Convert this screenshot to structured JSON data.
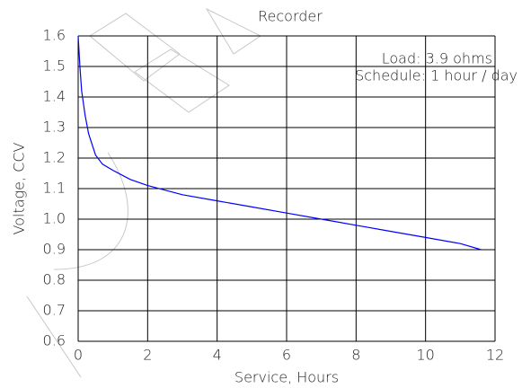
{
  "chart_data": {
    "type": "line",
    "title": "Recorder",
    "annotations": [
      "Load: 3.9 ohms",
      "Schedule: 1 hour / day"
    ],
    "x_label": "Service, Hours",
    "y_label": "Voltage, CCV",
    "x": [
      0,
      0.05,
      0.1,
      0.2,
      0.3,
      0.5,
      0.7,
      1,
      1.5,
      2,
      3,
      4,
      5,
      6,
      7,
      8,
      9,
      10,
      11,
      11.6
    ],
    "values": [
      1.6,
      1.5,
      1.42,
      1.34,
      1.28,
      1.21,
      1.18,
      1.16,
      1.13,
      1.11,
      1.08,
      1.06,
      1.04,
      1.02,
      1.0,
      0.98,
      0.96,
      0.94,
      0.92,
      0.9
    ],
    "color": "#0000ff",
    "xlim": [
      0,
      12
    ],
    "xticks": [
      0,
      2,
      4,
      6,
      8,
      10,
      12
    ],
    "ylim": [
      0.6,
      1.6
    ],
    "yticks": [
      0.6,
      0.7,
      0.8,
      0.9,
      {
        "value": 1,
        "label": "1.0"
      },
      1.1,
      1.2,
      1.3,
      1.4,
      1.5,
      1.6
    ],
    "grid": true
  }
}
